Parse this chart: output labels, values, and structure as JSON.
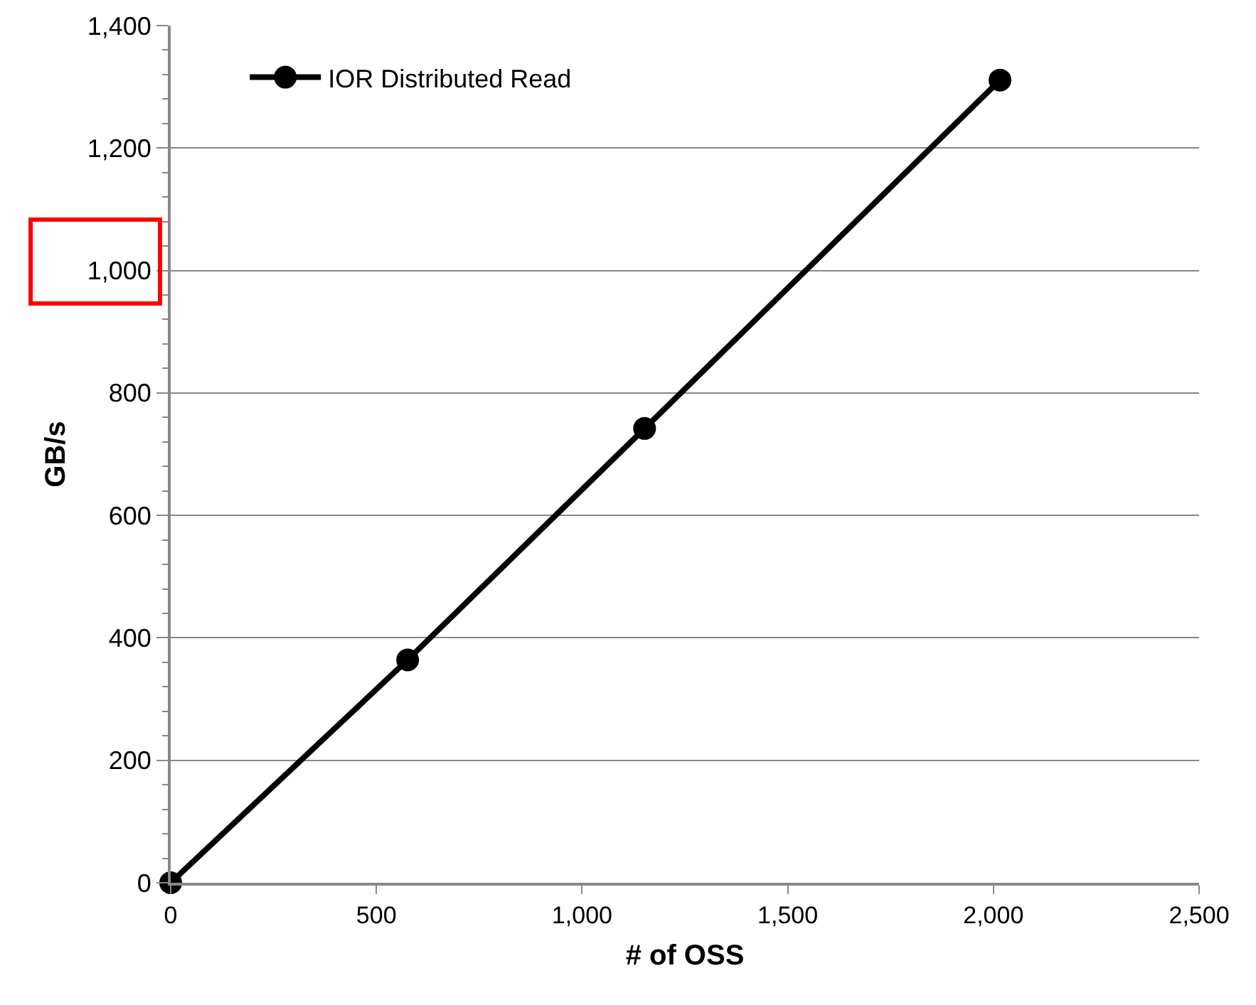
{
  "chart_data": {
    "type": "line",
    "xlabel": "# of OSS",
    "ylabel": "GB/s",
    "x": [
      0,
      576,
      1152,
      2016
    ],
    "series": [
      {
        "name": "IOR Distributed Read",
        "color": "#000000",
        "values": [
          0,
          364,
          742,
          1311
        ]
      }
    ],
    "xlim": [
      0,
      2500
    ],
    "xticks": [
      {
        "value": 0,
        "label": "0"
      },
      {
        "value": 500,
        "label": "500"
      },
      {
        "value": 1000,
        "label": "1,000"
      },
      {
        "value": 1500,
        "label": "1,500"
      },
      {
        "value": 2000,
        "label": "2,000"
      },
      {
        "value": 2500,
        "label": "2,500"
      }
    ],
    "ylim": [
      0,
      1400
    ],
    "yticks": [
      {
        "value": 0,
        "label": "0"
      },
      {
        "value": 200,
        "label": "200"
      },
      {
        "value": 400,
        "label": "400"
      },
      {
        "value": 600,
        "label": "600"
      },
      {
        "value": 800,
        "label": "800"
      },
      {
        "value": 1000,
        "label": "1,000"
      },
      {
        "value": 1200,
        "label": "1,200"
      },
      {
        "value": 1400,
        "label": "1,400"
      }
    ],
    "grid": "y",
    "legend": "top left",
    "marker": "circle",
    "line_style": "solid"
  }
}
